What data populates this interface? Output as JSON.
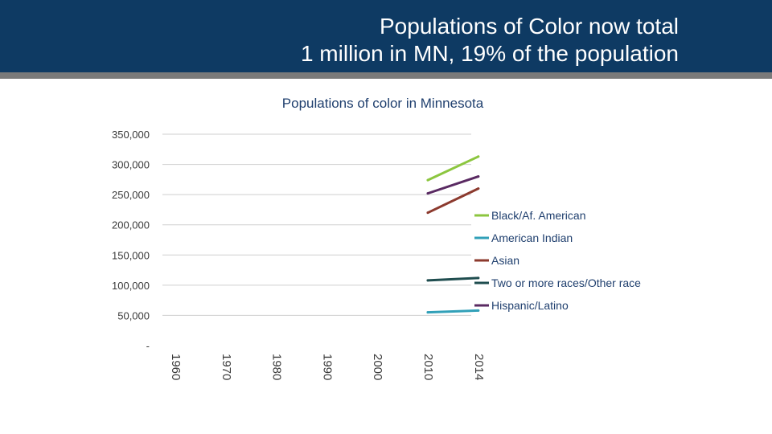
{
  "slide": {
    "title_line1": "Populations of Color now total",
    "title_line2": "1 million in MN, 19% of the population",
    "header_color": "#0e3a63",
    "rule_color": "#7a7a7a"
  },
  "chart_data": {
    "type": "line",
    "title": "Populations of color in Minnesota",
    "categories": [
      "1960",
      "1970",
      "1980",
      "1990",
      "2000",
      "2010",
      "2014"
    ],
    "ylim": [
      0,
      350000
    ],
    "yticks": [
      0,
      50000,
      100000,
      150000,
      200000,
      250000,
      300000,
      350000
    ],
    "ytick_labels": [
      "-",
      "50,000",
      "100,000",
      "150,000",
      "200,000",
      "250,000",
      "300,000",
      "350,000"
    ],
    "grid": true,
    "legend_position": "right",
    "series": [
      {
        "name": "Black/Af. American",
        "color": "#8cc63f",
        "values": [
          null,
          null,
          null,
          null,
          null,
          274000,
          313000
        ]
      },
      {
        "name": "American Indian",
        "color": "#31a0b8",
        "values": [
          null,
          null,
          null,
          null,
          null,
          55000,
          58000
        ]
      },
      {
        "name": "Asian",
        "color": "#8c3a2e",
        "values": [
          null,
          null,
          null,
          null,
          null,
          220000,
          260000
        ]
      },
      {
        "name": "Two or more races/Other race",
        "color": "#1f4d4f",
        "values": [
          null,
          null,
          null,
          null,
          null,
          108000,
          112000
        ]
      },
      {
        "name": "Hispanic/Latino",
        "color": "#5a2a62",
        "values": [
          null,
          null,
          null,
          null,
          null,
          252000,
          280000
        ]
      }
    ]
  }
}
